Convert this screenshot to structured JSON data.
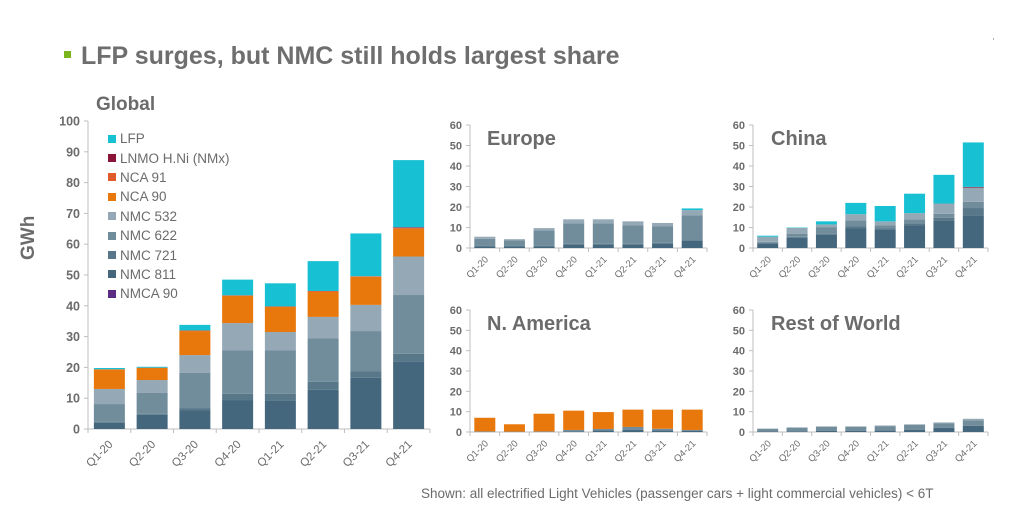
{
  "page": {
    "title": "LFP surges, but NMC still holds largest share",
    "footnote": "Shown: all electrified Light Vehicles (passenger cars + light commercial vehicles) < 6T"
  },
  "legend": [
    {
      "name": "LFP",
      "color": "#17c0d3"
    },
    {
      "name": "LNMO H.Ni (NMx)",
      "color": "#8a1538"
    },
    {
      "name": "NCA 91",
      "color": "#e05a2b"
    },
    {
      "name": "NCA 90",
      "color": "#e8770c"
    },
    {
      "name": "NMC 532",
      "color": "#95a8b5"
    },
    {
      "name": "NMC 622",
      "color": "#718d9c"
    },
    {
      "name": "NMC 721",
      "color": "#587889"
    },
    {
      "name": "NMC 811",
      "color": "#45677d"
    },
    {
      "name": "NMCA 90",
      "color": "#5b2c82"
    }
  ],
  "chart_data": [
    {
      "type": "bar",
      "stacked": true,
      "title": "Global",
      "xlabel": "",
      "ylabel": "GWh",
      "ylim": [
        0,
        100
      ],
      "yticks": [
        0,
        10,
        20,
        30,
        40,
        50,
        60,
        70,
        80,
        90,
        100
      ],
      "categories": [
        "Q1-20",
        "Q2-20",
        "Q3-20",
        "Q4-20",
        "Q1-21",
        "Q2-21",
        "Q3-21",
        "Q4-21"
      ],
      "legend_position": "top-left",
      "series": [
        {
          "name": "NMC 811",
          "values": [
            2.0,
            4.6,
            6.0,
            9.4,
            9.1,
            12.7,
            16.6,
            22.0
          ]
        },
        {
          "name": "NMC 721",
          "values": [
            0.3,
            0.3,
            0.8,
            2.0,
            2.3,
            2.6,
            2.2,
            2.4
          ]
        },
        {
          "name": "NMC 622",
          "values": [
            5.8,
            6.8,
            11.4,
            14.2,
            14.2,
            14.2,
            13.0,
            19.1
          ]
        },
        {
          "name": "NMC 532",
          "values": [
            4.9,
            4.2,
            5.8,
            8.8,
            5.9,
            6.9,
            8.5,
            12.5
          ]
        },
        {
          "name": "NCA 90",
          "values": [
            6.3,
            3.9,
            7.8,
            8.8,
            8.1,
            8.1,
            9.1,
            9.0
          ]
        },
        {
          "name": "NCA 91",
          "values": [
            0.1,
            0.1,
            0.2,
            0.2,
            0.2,
            0.3,
            0.2,
            0.3
          ]
        },
        {
          "name": "LNMO H.Ni (NMx)",
          "values": [
            0,
            0,
            0,
            0,
            0,
            0,
            0,
            0.2
          ]
        },
        {
          "name": "LFP",
          "values": [
            0.4,
            0.3,
            1.8,
            5.1,
            7.5,
            9.7,
            13.9,
            21.8
          ]
        },
        {
          "name": "NMCA 90",
          "values": [
            0,
            0,
            0,
            0,
            0,
            0,
            0,
            0
          ]
        }
      ]
    },
    {
      "type": "bar",
      "stacked": true,
      "title": "Europe",
      "ylim": [
        0,
        60
      ],
      "yticks": [
        0,
        10,
        20,
        30,
        40,
        50,
        60
      ],
      "categories": [
        "Q1-20",
        "Q2-20",
        "Q3-20",
        "Q4-20",
        "Q1-21",
        "Q2-21",
        "Q3-21",
        "Q4-21"
      ],
      "series": [
        {
          "name": "NMC 811",
          "values": [
            0.5,
            0.5,
            0.5,
            1.5,
            1.5,
            1.5,
            2.0,
            3.5
          ]
        },
        {
          "name": "NMC 721",
          "values": [
            0.5,
            0.5,
            0.5,
            0.5,
            0.5,
            0.5,
            0.5,
            0.8
          ]
        },
        {
          "name": "NMC 622",
          "values": [
            3.5,
            2.7,
            7.5,
            10.0,
            10.0,
            9.0,
            8.0,
            11.7
          ]
        },
        {
          "name": "NMC 532",
          "values": [
            1.0,
            0.6,
            1.2,
            2.0,
            2.0,
            2.0,
            1.7,
            2.5
          ]
        },
        {
          "name": "LFP",
          "values": [
            0,
            0,
            0,
            0,
            0,
            0,
            0,
            0.8
          ]
        }
      ]
    },
    {
      "type": "bar",
      "stacked": true,
      "title": "China",
      "ylim": [
        0,
        60
      ],
      "yticks": [
        0,
        10,
        20,
        30,
        40,
        50,
        60
      ],
      "categories": [
        "Q1-20",
        "Q2-20",
        "Q3-20",
        "Q4-20",
        "Q1-21",
        "Q2-21",
        "Q3-21",
        "Q4-21"
      ],
      "series": [
        {
          "name": "NMC 811",
          "values": [
            2.0,
            5.0,
            6.5,
            9.5,
            8.8,
            11.0,
            13.2,
            16.0
          ]
        },
        {
          "name": "NMC 721",
          "values": [
            0.5,
            0.5,
            0.5,
            1.0,
            0.7,
            1.0,
            1.5,
            3.5
          ]
        },
        {
          "name": "NMC 622",
          "values": [
            0.5,
            1.5,
            3.0,
            3.0,
            1.5,
            2.0,
            2.0,
            3.0
          ]
        },
        {
          "name": "NMC 532",
          "values": [
            2.5,
            2.8,
            1.5,
            3.0,
            2.0,
            3.0,
            5.0,
            7.0
          ]
        },
        {
          "name": "LNMO H.Ni (NMx)",
          "values": [
            0,
            0,
            0,
            0,
            0,
            0,
            0,
            0.3
          ]
        },
        {
          "name": "LFP",
          "values": [
            0.5,
            0.2,
            1.5,
            5.5,
            7.5,
            9.5,
            14.0,
            21.7
          ]
        }
      ]
    },
    {
      "type": "bar",
      "stacked": true,
      "title": "N. America",
      "ylim": [
        0,
        60
      ],
      "yticks": [
        0,
        10,
        20,
        30,
        40,
        50,
        60
      ],
      "categories": [
        "Q1-20",
        "Q2-20",
        "Q3-20",
        "Q4-20",
        "Q1-21",
        "Q2-21",
        "Q3-21",
        "Q4-21"
      ],
      "series": [
        {
          "name": "NMC 811",
          "values": [
            0,
            0,
            0,
            0.3,
            0.8,
            1.0,
            0.8,
            0.5
          ]
        },
        {
          "name": "NMC 622",
          "values": [
            0.3,
            0.2,
            0.3,
            0.7,
            0.7,
            1.5,
            0.8,
            0.5
          ]
        },
        {
          "name": "NCA 90",
          "values": [
            6.7,
            3.6,
            8.7,
            9.5,
            8.3,
            8.5,
            9.4,
            10.0
          ]
        }
      ]
    },
    {
      "type": "bar",
      "stacked": true,
      "title": "Rest of World",
      "ylim": [
        0,
        60
      ],
      "yticks": [
        0,
        10,
        20,
        30,
        40,
        50,
        60
      ],
      "categories": [
        "Q1-20",
        "Q2-20",
        "Q3-20",
        "Q4-20",
        "Q1-21",
        "Q2-21",
        "Q3-21",
        "Q4-21"
      ],
      "series": [
        {
          "name": "NMC 811",
          "values": [
            0.3,
            0.3,
            0.5,
            0.5,
            0.7,
            1.0,
            2.0,
            3.0
          ]
        },
        {
          "name": "NMC 622",
          "values": [
            1.2,
            1.7,
            2.0,
            2.0,
            2.2,
            2.5,
            2.2,
            2.8
          ]
        },
        {
          "name": "NMC 532",
          "values": [
            0.2,
            0.3,
            0.3,
            0.3,
            0.3,
            0.3,
            0.5,
            0.7
          ]
        }
      ]
    }
  ]
}
